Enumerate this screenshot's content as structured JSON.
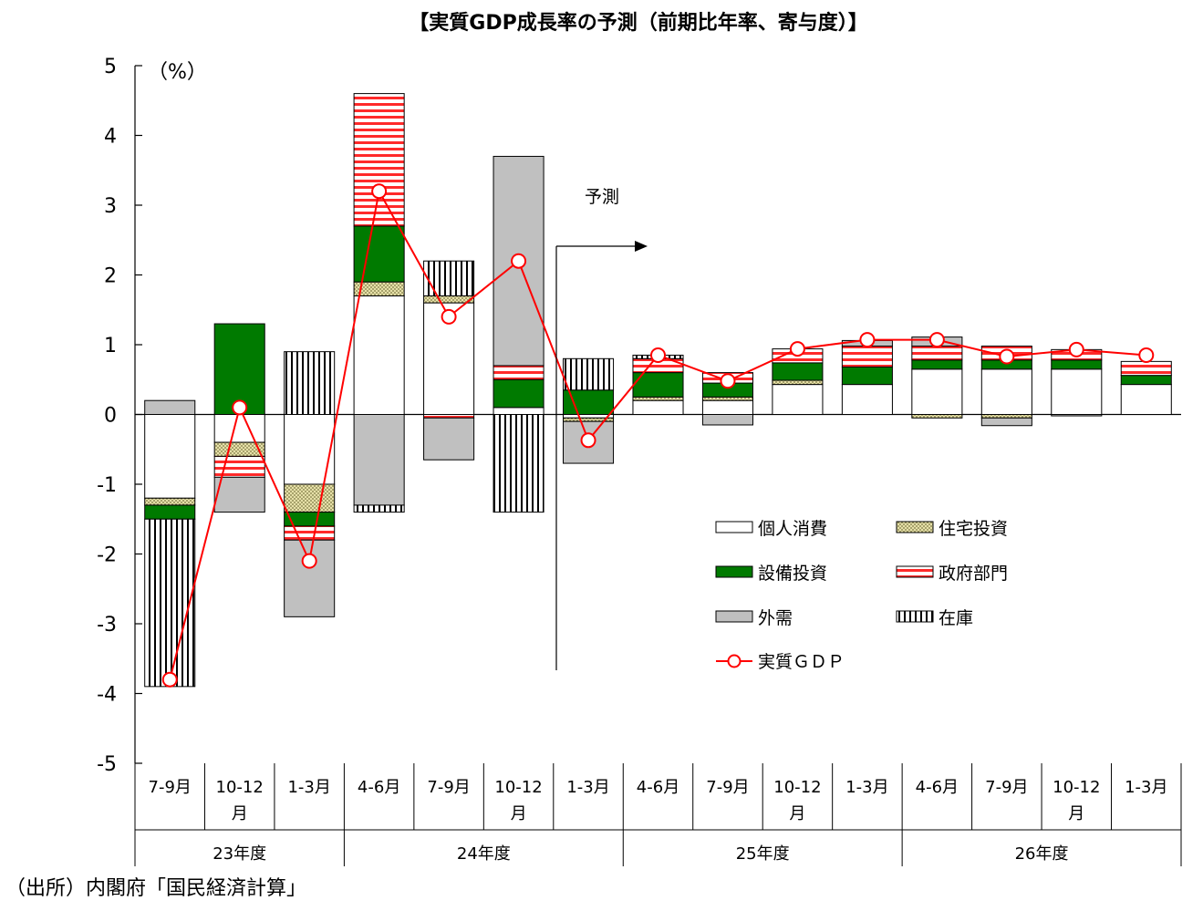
{
  "chart_data": {
    "type": "bar",
    "title": "【実質GDP成長率の予測（前期比年率、寄与度）】",
    "unit_label": "（%）",
    "ylim": [
      -5,
      5
    ],
    "yticks": [
      5,
      4,
      3,
      2,
      1,
      0,
      -1,
      -2,
      -3,
      -4,
      -5
    ],
    "quarters": [
      {
        "line1": "7-9月",
        "line2": ""
      },
      {
        "line1": "10-12",
        "line2": "月"
      },
      {
        "line1": "1-3月",
        "line2": ""
      },
      {
        "line1": "4-6月",
        "line2": ""
      },
      {
        "line1": "7-9月",
        "line2": ""
      },
      {
        "line1": "10-12",
        "line2": "月"
      },
      {
        "line1": "1-3月",
        "line2": ""
      },
      {
        "line1": "4-6月",
        "line2": ""
      },
      {
        "line1": "7-9月",
        "line2": ""
      },
      {
        "line1": "10-12",
        "line2": "月"
      },
      {
        "line1": "1-3月",
        "line2": ""
      },
      {
        "line1": "4-6月",
        "line2": ""
      },
      {
        "line1": "7-9月",
        "line2": ""
      },
      {
        "line1": "10-12",
        "line2": "月"
      },
      {
        "line1": "1-3月",
        "line2": ""
      }
    ],
    "fiscal_years": [
      {
        "label": "23年度",
        "start": 0,
        "end": 2
      },
      {
        "label": "24年度",
        "start": 3,
        "end": 6
      },
      {
        "label": "25年度",
        "start": 7,
        "end": 10
      },
      {
        "label": "26年度",
        "start": 11,
        "end": 14
      }
    ],
    "series": [
      {
        "name": "個人消費",
        "pattern": "white",
        "values": [
          -1.2,
          -0.4,
          -1.0,
          1.7,
          1.6,
          0.1,
          -0.05,
          0.2,
          0.2,
          0.43,
          0.43,
          0.65,
          0.65,
          0.65,
          0.43
        ]
      },
      {
        "name": "住宅投資",
        "pattern": "dots",
        "values": [
          -0.1,
          -0.2,
          -0.4,
          0.2,
          0.1,
          0.0,
          -0.05,
          0.05,
          0.05,
          0.06,
          0.0,
          -0.05,
          -0.05,
          0.0,
          0.0
        ]
      },
      {
        "name": "設備投資",
        "pattern": "green",
        "values": [
          -0.2,
          1.3,
          -0.2,
          0.8,
          0.0,
          0.4,
          0.35,
          0.35,
          0.2,
          0.25,
          0.25,
          0.13,
          0.13,
          0.13,
          0.13
        ]
      },
      {
        "name": "政府部門",
        "pattern": "redstripes",
        "values": [
          0.0,
          -0.3,
          -0.2,
          1.9,
          -0.05,
          0.2,
          0.0,
          0.2,
          0.15,
          0.2,
          0.3,
          0.2,
          0.2,
          0.15,
          0.2
        ]
      },
      {
        "name": "外需",
        "pattern": "gray",
        "values": [
          0.2,
          -0.5,
          -1.1,
          -1.3,
          -0.6,
          3.0,
          -0.6,
          0.0,
          -0.15,
          0.0,
          0.08,
          0.13,
          -0.11,
          -0.02,
          0.0
        ]
      },
      {
        "name": "在庫",
        "pattern": "vstripes",
        "values": [
          -2.4,
          0.0,
          0.9,
          -0.1,
          0.5,
          -1.4,
          0.45,
          0.05,
          0.0,
          0.0,
          0.0,
          0.0,
          0.0,
          0.0,
          0.0
        ]
      }
    ],
    "line_series": {
      "name": "実質ＧＤＰ",
      "values": [
        -3.8,
        0.1,
        -2.1,
        3.2,
        1.4,
        2.2,
        -0.37,
        0.85,
        0.48,
        0.94,
        1.07,
        1.07,
        0.83,
        0.93,
        0.85
      ]
    },
    "forecast_label": "予測",
    "forecast_start_index": 6,
    "colors": {
      "green": "#007a00",
      "red": "#ff0000",
      "gray": "#c0c0c0",
      "olive": "#c8c080"
    }
  },
  "source_note": "（出所）内閣府「国民経済計算」"
}
